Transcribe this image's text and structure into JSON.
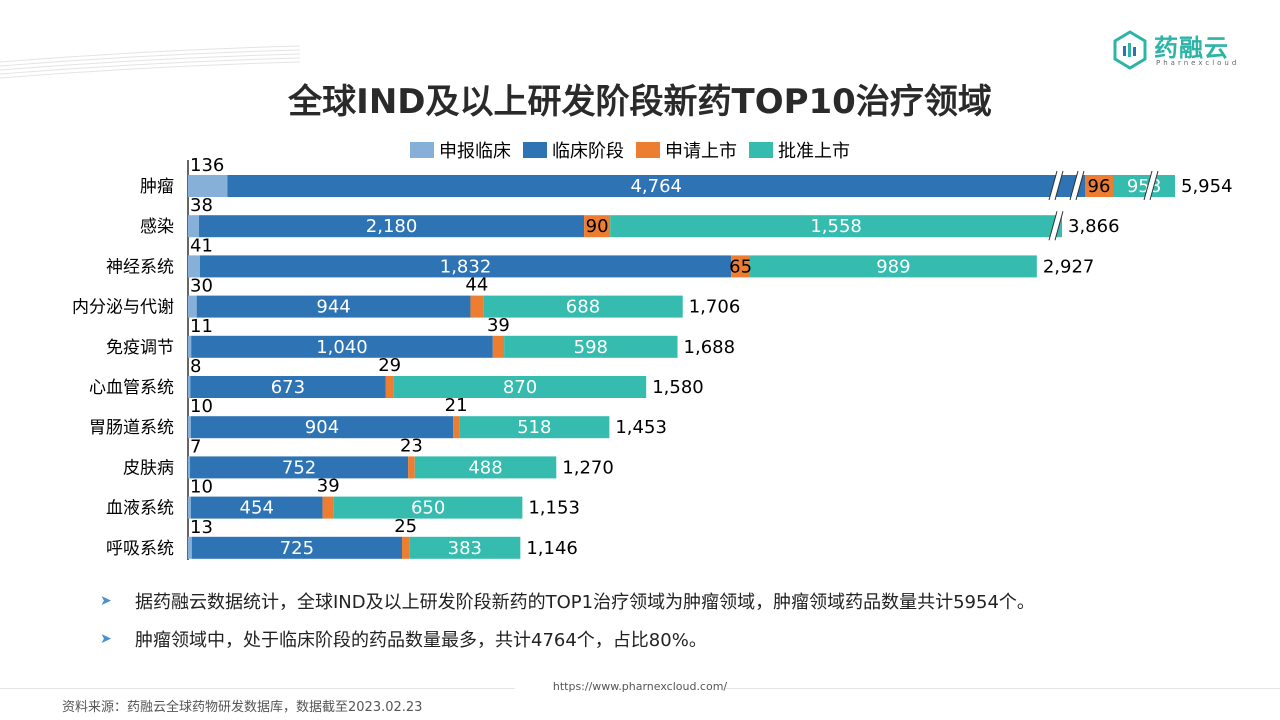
{
  "logo": {
    "name": "药融云",
    "subtitle": "Pharnexcloud"
  },
  "title": "全球IND及以上研发阶段新药TOP10治疗领域",
  "chart_data": {
    "type": "bar",
    "orientation": "horizontal",
    "stacked": true,
    "title": "全球IND及以上研发阶段新药TOP10治疗领域",
    "categories": [
      "肿瘤",
      "感染",
      "神经系统",
      "内分泌与代谢",
      "免疫调节",
      "心血管系统",
      "胃肠道系统",
      "皮肤病",
      "血液系统",
      "呼吸系统"
    ],
    "series": [
      {
        "name": "申报临床",
        "color": "#86b0d8",
        "values": [
          136,
          38,
          41,
          30,
          11,
          8,
          10,
          7,
          10,
          13
        ]
      },
      {
        "name": "临床阶段",
        "color": "#2e74b5",
        "values": [
          4764,
          2180,
          1832,
          944,
          1040,
          673,
          904,
          752,
          454,
          725
        ]
      },
      {
        "name": "申请上市",
        "color": "#ed7d31",
        "values": [
          96,
          90,
          65,
          44,
          39,
          29,
          21,
          23,
          39,
          25
        ]
      },
      {
        "name": "批准上市",
        "color": "#35bcae",
        "values": [
          958,
          1558,
          989,
          688,
          598,
          870,
          518,
          488,
          650,
          383
        ]
      }
    ],
    "totals": [
      "5,954",
      "3,866",
      "2,927",
      "1,706",
      "1,688",
      "1,580",
      "1,453",
      "1,270",
      "1,153",
      "1,146"
    ],
    "axis_breaks": [
      "肿瘤",
      "感染"
    ],
    "legend": "top",
    "xlabel": "",
    "ylabel": "",
    "grid": false
  },
  "bullets": [
    "据药融云数据统计，全球IND及以上研发阶段新药的TOP1治疗领域为肿瘤领域，肿瘤领域药品数量共计5954个。",
    "肿瘤领域中，处于临床阶段的药品数量最多，共计4764个，占比80%。"
  ],
  "footer": {
    "url": "https://www.pharnexcloud.com/",
    "source": "资料来源：药融云全球药物研发数据库，数据截至2023.02.23"
  }
}
